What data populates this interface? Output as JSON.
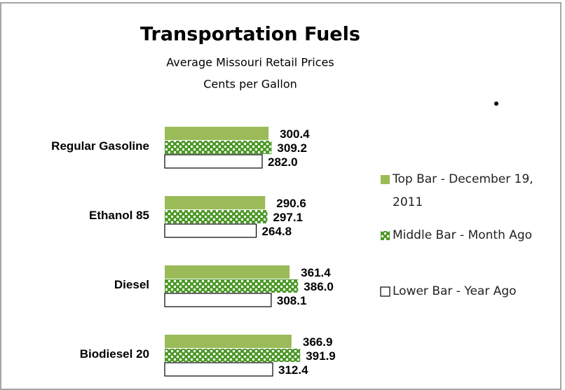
{
  "chart_data": {
    "type": "hbar",
    "title": "Transportation Fuels",
    "subtitle": [
      "Average Missouri Retail Prices",
      "Cents per Gallon"
    ],
    "categories": [
      "Regular Gasoline",
      "Ethanol 85",
      "Diesel",
      "Biodiesel 20"
    ],
    "series": [
      {
        "name": "Top Bar - December 19, 2011",
        "color": "#9bbb59",
        "values": [
          300.4,
          290.6,
          361.4,
          366.9
        ],
        "value_labels": [
          "300.4",
          "290.6",
          "361.4",
          "366.9"
        ]
      },
      {
        "name": "Middle Bar - Month Ago",
        "color": "#4e9a2a",
        "pattern": "checker",
        "values": [
          309.2,
          297.1,
          386.0,
          391.9
        ],
        "value_labels": [
          "309.2",
          "297.1",
          "386.0",
          "391.9"
        ]
      },
      {
        "name": "Lower Bar - Year Ago",
        "color": "#ffffff",
        "values": [
          282.0,
          264.8,
          308.1,
          312.4
        ],
        "value_labels": [
          "282.0",
          "264.8",
          "308.1",
          "312.4"
        ]
      }
    ],
    "legend": "right"
  }
}
